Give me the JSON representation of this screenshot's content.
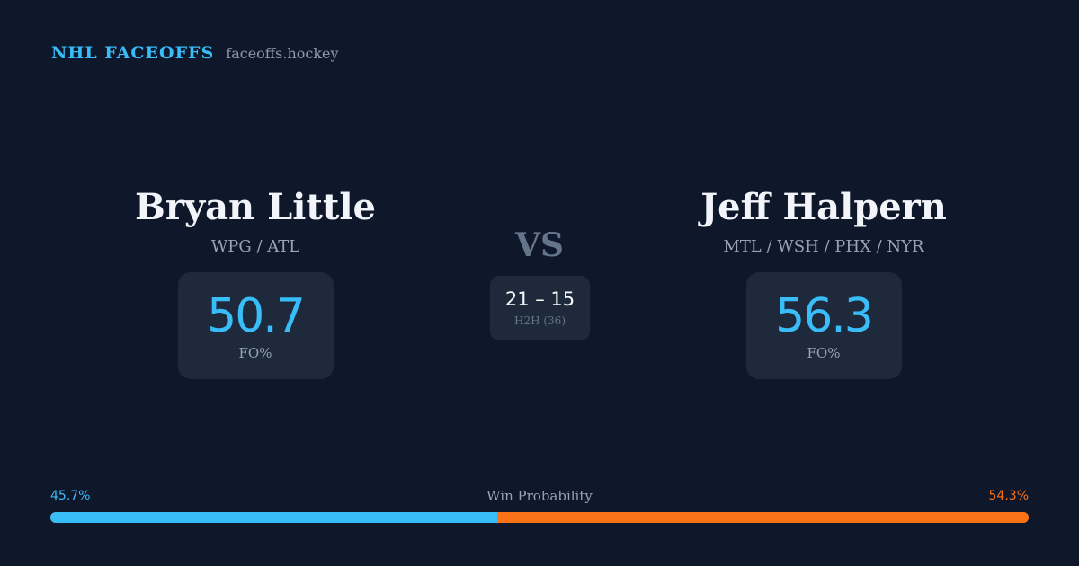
{
  "brand": {
    "name": "NHL FACEOFFS",
    "site": "faceoffs.hockey"
  },
  "players": [
    {
      "name": "Bryan Little",
      "teams": "WPG / ATL",
      "fo_value": "50.7",
      "fo_label": "FO%"
    },
    {
      "name": "Jeff Halpern",
      "teams": "MTL / WSH / PHX / NYR",
      "fo_value": "56.3",
      "fo_label": "FO%"
    }
  ],
  "vs_label": "VS",
  "head_to_head": {
    "score": "21 – 15",
    "label": "H2H (36)"
  },
  "win_probability": {
    "title": "Win Probability",
    "left_label": "45.7%",
    "right_label": "54.3%",
    "left_percent": 45.7,
    "right_percent": 54.3,
    "colors": {
      "left": "#38bdf8",
      "right": "#f97316"
    }
  }
}
